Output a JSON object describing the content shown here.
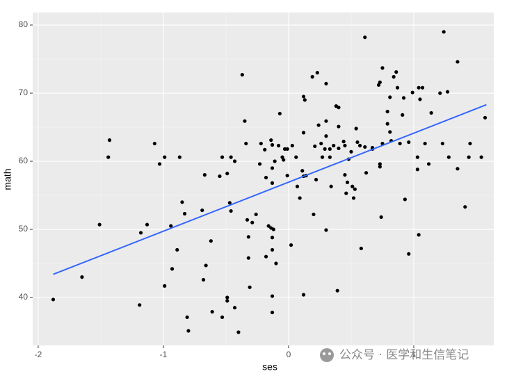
{
  "chart_data": {
    "type": "scatter",
    "x_label": "ses",
    "y_label": "math",
    "annotation": "公众号 · 医学和生信笔记",
    "point_color": "#000000",
    "background": "#ebebeb",
    "grid": true,
    "xlim": [
      -2.044,
      1.639
    ],
    "ylim": [
      32.96,
      81.84
    ],
    "xticks": [
      -2,
      -1,
      0,
      1
    ],
    "yticks": [
      40,
      50,
      60,
      70,
      80
    ],
    "x": [
      -1.88,
      -1.65,
      -1.51,
      -1.44,
      -1.43,
      -1.19,
      -1.18,
      -1.13,
      -1.07,
      -1.03,
      -0.99,
      -0.99,
      -0.94,
      -0.93,
      -0.89,
      -0.87,
      -0.85,
      -0.83,
      -0.81,
      -0.8,
      -0.69,
      -0.68,
      -0.67,
      -0.66,
      -0.62,
      -0.61,
      -0.55,
      -0.53,
      -0.53,
      -0.49,
      -0.49,
      -0.49,
      -0.47,
      -0.46,
      -0.46,
      -0.43,
      -0.43,
      -0.4,
      -0.37,
      -0.35,
      -0.34,
      -0.33,
      -0.32,
      -0.32,
      -0.31,
      -0.29,
      -0.26,
      -0.23,
      -0.22,
      -0.19,
      -0.18,
      -0.18,
      -0.16,
      -0.14,
      -0.14,
      -0.13,
      -0.13,
      -0.13,
      -0.13,
      -0.13,
      -0.13,
      -0.13,
      -0.12,
      -0.1,
      -0.11,
      -0.08,
      -0.07,
      -0.05,
      -0.04,
      -0.03,
      -0.01,
      -0.01,
      0.02,
      0.03,
      0.06,
      0.07,
      0.09,
      0.11,
      0.12,
      0.12,
      0.12,
      0.13,
      0.12,
      0.14,
      0.19,
      0.2,
      0.21,
      0.22,
      0.23,
      0.24,
      0.26,
      0.27,
      0.29,
      0.3,
      0.3,
      0.3,
      0.3,
      0.33,
      0.33,
      0.34,
      0.36,
      0.38,
      0.39,
      0.4,
      0.4,
      0.4,
      0.44,
      0.45,
      0.45,
      0.46,
      0.47,
      0.48,
      0.5,
      0.51,
      0.52,
      0.53,
      0.54,
      0.55,
      0.57,
      0.58,
      0.61,
      0.61,
      0.62,
      0.67,
      0.67,
      0.72,
      0.73,
      0.73,
      0.73,
      0.74,
      0.75,
      0.75,
      0.79,
      0.79,
      0.81,
      0.81,
      0.82,
      0.84,
      0.86,
      0.87,
      0.89,
      0.91,
      0.92,
      0.93,
      0.96,
      0.96,
      0.99,
      1.03,
      1.03,
      1.04,
      1.04,
      1.05,
      1.07,
      1.09,
      1.12,
      1.14,
      1.21,
      1.23,
      1.24,
      1.27,
      1.28,
      1.35,
      1.35,
      1.41,
      1.45,
      1.54,
      1.57,
      1.44
    ],
    "y": [
      39.7,
      43.0,
      50.7,
      60.6,
      63.1,
      38.9,
      49.5,
      50.7,
      62.6,
      59.6,
      41.7,
      60.6,
      50.5,
      44.2,
      47.0,
      60.6,
      54.0,
      52.3,
      37.1,
      35.1,
      52.8,
      42.6,
      58.0,
      44.7,
      48.3,
      37.9,
      57.8,
      60.6,
      37.1,
      39.5,
      58.2,
      40.0,
      53.9,
      60.6,
      52.7,
      60.0,
      38.5,
      34.9,
      72.7,
      65.9,
      62.6,
      51.4,
      45.8,
      48.9,
      41.5,
      51.0,
      52.2,
      59.6,
      62.6,
      61.7,
      46.0,
      57.6,
      50.5,
      63.1,
      50.2,
      59.0,
      62.4,
      56.8,
      47.0,
      48.8,
      40.2,
      37.8,
      50.0,
      45.0,
      60.0,
      62.3,
      67.0,
      60.6,
      60.2,
      61.8,
      61.8,
      57.9,
      47.7,
      62.3,
      60.6,
      56.3,
      54.6,
      58.6,
      57.8,
      64.2,
      69.5,
      69.0,
      40.4,
      57.9,
      72.4,
      52.2,
      62.2,
      57.3,
      73.0,
      65.3,
      62.6,
      60.6,
      61.8,
      71.4,
      65.9,
      63.7,
      49.9,
      60.6,
      61.8,
      56.3,
      62.3,
      68.1,
      41.0,
      65.1,
      67.9,
      61.9,
      62.9,
      62.3,
      58.0,
      55.3,
      56.9,
      60.3,
      61.4,
      56.3,
      54.6,
      55.9,
      64.8,
      62.8,
      62.3,
      47.2,
      62.1,
      78.2,
      58.3,
      61.8,
      62.0,
      71.2,
      59.6,
      59.2,
      71.6,
      51.8,
      73.7,
      62.6,
      67.3,
      65.5,
      69.4,
      64.3,
      63.0,
      72.4,
      73.1,
      70.8,
      62.6,
      66.8,
      69.3,
      54.4,
      62.8,
      46.4,
      70.1,
      60.6,
      58.8,
      49.2,
      70.8,
      69.1,
      70.8,
      62.6,
      59.6,
      67.1,
      70.0,
      62.6,
      79.0,
      70.2,
      60.6,
      58.9,
      74.6,
      53.3,
      62.6,
      60.6,
      66.4,
      60.6
    ],
    "trend": {
      "color": "#3366ff",
      "x": [
        -1.88,
        1.58
      ],
      "y": [
        43.4,
        68.3
      ]
    }
  }
}
